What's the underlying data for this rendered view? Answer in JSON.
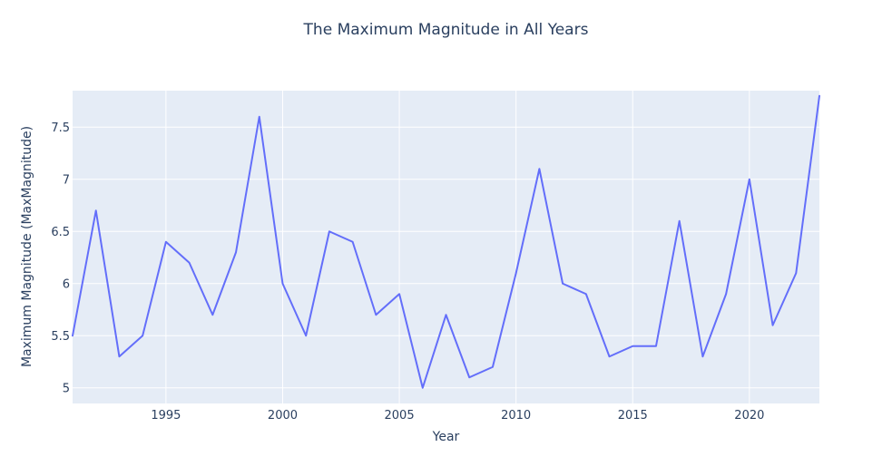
{
  "chart_data": {
    "type": "line",
    "title": "The Maximum Magnitude in All Years",
    "xlabel": "Year",
    "ylabel": "Maximum Magnitude (MaxMagnitude)",
    "x": [
      1991,
      1992,
      1993,
      1994,
      1995,
      1996,
      1997,
      1998,
      1999,
      2000,
      2001,
      2002,
      2003,
      2004,
      2005,
      2006,
      2007,
      2008,
      2009,
      2010,
      2011,
      2012,
      2013,
      2014,
      2015,
      2016,
      2017,
      2018,
      2019,
      2020,
      2021,
      2022,
      2023
    ],
    "series": [
      {
        "values": [
          5.5,
          6.7,
          5.3,
          5.5,
          6.4,
          6.2,
          5.7,
          6.3,
          7.6,
          6.0,
          5.5,
          6.5,
          6.4,
          5.7,
          5.9,
          5.0,
          5.7,
          5.1,
          5.2,
          6.1,
          7.1,
          6.0,
          5.9,
          5.3,
          5.4,
          5.4,
          6.6,
          5.3,
          5.9,
          7.0,
          5.6,
          6.1,
          7.8
        ],
        "color": "#636efa"
      }
    ],
    "xlim": [
      1991,
      2023
    ],
    "ylim": [
      4.85,
      7.85
    ],
    "xticks": [
      1995,
      2000,
      2005,
      2010,
      2015,
      2020
    ],
    "xtick_labels": [
      "1995",
      "2000",
      "2005",
      "2010",
      "2015",
      "2020"
    ],
    "yticks": [
      5,
      5.5,
      6,
      6.5,
      7,
      7.5
    ],
    "ytick_labels": [
      "5",
      "5.5",
      "6",
      "6.5",
      "7",
      "7.5"
    ],
    "grid": true,
    "legend": "none",
    "plot_background": "#e5ecf6",
    "grid_color": "#ffffff",
    "text_color": "#2a3f5f"
  }
}
